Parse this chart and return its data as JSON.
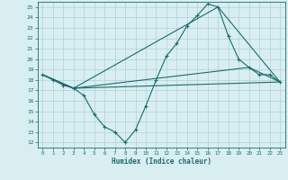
{
  "xlabel": "Humidex (Indice chaleur)",
  "bg_color": "#d8eef1",
  "grid_color": "#b0d0d8",
  "line_color": "#1a6b6b",
  "xlim": [
    -0.5,
    23.5
  ],
  "ylim": [
    11.5,
    25.5
  ],
  "xticks": [
    0,
    1,
    2,
    3,
    4,
    5,
    6,
    7,
    8,
    9,
    10,
    11,
    12,
    13,
    14,
    15,
    16,
    17,
    18,
    19,
    20,
    21,
    22,
    23
  ],
  "yticks": [
    12,
    13,
    14,
    15,
    16,
    17,
    18,
    19,
    20,
    21,
    22,
    23,
    24,
    25
  ],
  "series": [
    [
      0,
      18.5
    ],
    [
      1,
      18.0
    ],
    [
      2,
      17.5
    ],
    [
      3,
      17.2
    ],
    [
      4,
      16.5
    ],
    [
      5,
      14.7
    ],
    [
      6,
      13.5
    ],
    [
      7,
      13.0
    ],
    [
      8,
      12.0
    ],
    [
      9,
      13.2
    ],
    [
      10,
      15.5
    ],
    [
      11,
      18.0
    ],
    [
      12,
      20.3
    ],
    [
      13,
      21.5
    ],
    [
      14,
      23.2
    ],
    [
      15,
      24.2
    ],
    [
      16,
      25.3
    ],
    [
      17,
      25.0
    ],
    [
      18,
      22.2
    ],
    [
      19,
      20.0
    ],
    [
      20,
      19.2
    ],
    [
      21,
      18.5
    ],
    [
      22,
      18.5
    ],
    [
      23,
      17.8
    ]
  ],
  "line2": [
    [
      0,
      18.5
    ],
    [
      3,
      17.2
    ],
    [
      17,
      25.0
    ],
    [
      23,
      17.8
    ]
  ],
  "line3": [
    [
      0,
      18.5
    ],
    [
      3,
      17.2
    ],
    [
      20,
      19.2
    ],
    [
      23,
      17.8
    ]
  ],
  "line4": [
    [
      0,
      18.5
    ],
    [
      3,
      17.2
    ],
    [
      23,
      17.8
    ]
  ]
}
